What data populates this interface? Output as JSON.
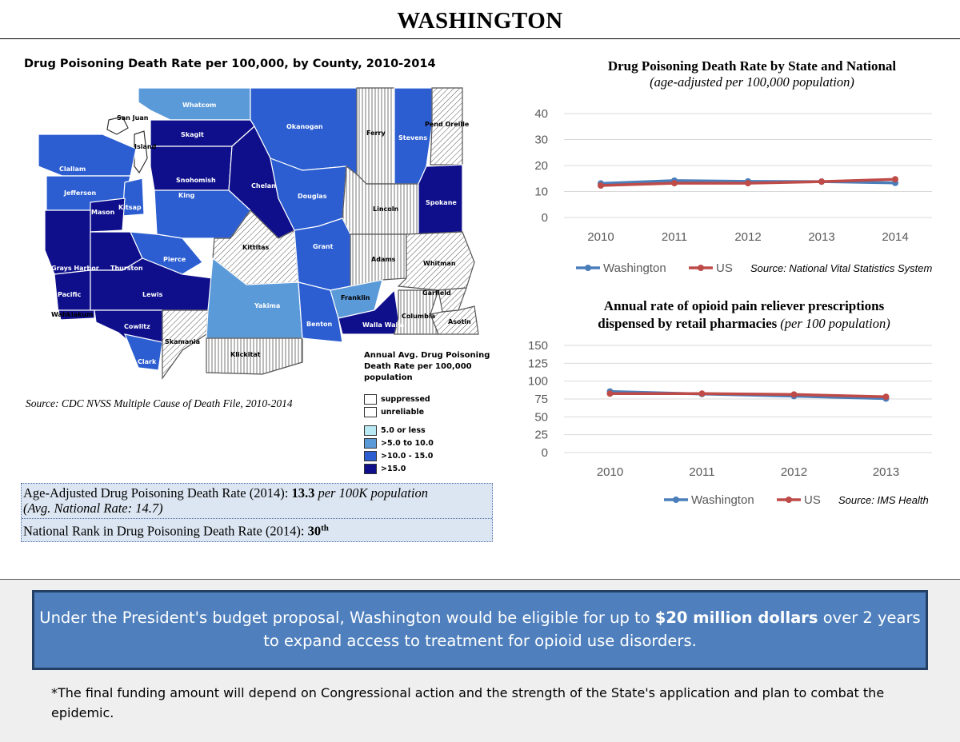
{
  "page": {
    "title": "WASHINGTON"
  },
  "map": {
    "title": "Drug Poisoning Death Rate per 100,000, by County, 2010-2014",
    "source": "Source: CDC NVSS Multiple Cause of Death File, 2010-2014",
    "legend": {
      "title": "Annual Avg. Drug Poisoning Death Rate per 100,000 population",
      "items": [
        {
          "label": "suppressed",
          "color": "#ffffff"
        },
        {
          "label": "unreliable",
          "color": "#ffffff"
        },
        {
          "label": "5.0 or less",
          "color": "#b9e9f2"
        },
        {
          "label": ">5.0 to 10.0",
          "color": "#5b9ad9"
        },
        {
          "label": ">10.0 - 15.0",
          "color": "#2c5ed1"
        },
        {
          "label": ">15.0",
          "color": "#0f0f8c"
        }
      ]
    },
    "counties": {
      "whatcom": "Whatcom",
      "san_juan": "San Juan",
      "skagit": "Skagit",
      "island": "Island",
      "okanogan": "Okanogan",
      "ferry": "Ferry",
      "stevens": "Stevens",
      "pend_oreille": "Pend Oreille",
      "clallam": "Clallam",
      "jefferson": "Jefferson",
      "snohomish": "Snohomish",
      "chelan": "Chelan",
      "douglas": "Douglas",
      "mason": "Mason",
      "kitsap": "Kitsap",
      "king": "King",
      "lincoln": "Lincoln",
      "spokane": "Spokane",
      "grays_harbor": "Grays Harbor",
      "thurston": "Thurston",
      "pierce": "Pierce",
      "kittitas": "Kittitas",
      "grant": "Grant",
      "adams": "Adams",
      "whitman": "Whitman",
      "pacific": "Pacific",
      "lewis": "Lewis",
      "yakima": "Yakima",
      "franklin": "Franklin",
      "garfield": "Garfield",
      "wahkiakum": "Wahkiakum",
      "cowlitz": "Cowlitz",
      "benton": "Benton",
      "walla_walla": "Walla Walla",
      "columbia": "Columbia",
      "asotin": "Asotin",
      "skamania": "Skamania",
      "klickitat": "Klickitat",
      "clark": "Clark"
    }
  },
  "stats": {
    "line1_prefix": "Age-Adjusted Drug Poisoning Death Rate (2014): ",
    "line1_value": "13.3",
    "line1_unit": " per 100K population",
    "line1_sub": "(Avg. National Rate: 14.7)",
    "line2_prefix": "National Rank in Drug Poisoning Death Rate (2014): ",
    "line2_value": "30",
    "line2_sup": "th"
  },
  "chart_data": [
    {
      "type": "line",
      "title": "Drug Poisoning Death Rate by State and National",
      "subtitle": "(age-adjusted per 100,000 population)",
      "categories": [
        "2010",
        "2011",
        "2012",
        "2013",
        "2014"
      ],
      "series": [
        {
          "name": "Washington",
          "values": [
            13.1,
            14.2,
            13.9,
            13.8,
            13.3
          ],
          "color": "#4a7ebb"
        },
        {
          "name": "US",
          "values": [
            12.3,
            13.2,
            13.2,
            13.8,
            14.7
          ],
          "color": "#be4b48"
        }
      ],
      "ylim": [
        0,
        40
      ],
      "yticks": [
        "0",
        "10",
        "20",
        "30",
        "40"
      ],
      "source": "Source: National Vital Statistics System"
    },
    {
      "type": "line",
      "title": "Annual rate of opioid pain reliever prescriptions",
      "title2": "dispensed by retail pharmacies",
      "subtitle": "(per 100 population)",
      "categories": [
        "2010",
        "2011",
        "2012",
        "2013"
      ],
      "series": [
        {
          "name": "Washington",
          "values": [
            85.5,
            82.0,
            79.0,
            75.5
          ],
          "color": "#4a7ebb"
        },
        {
          "name": "US",
          "values": [
            82.5,
            82.5,
            81.3,
            78.1
          ],
          "color": "#be4b48"
        }
      ],
      "ylim": [
        0,
        150
      ],
      "yticks": [
        "0",
        "25",
        "50",
        "75",
        "100",
        "125",
        "150"
      ],
      "source": "Source: IMS Health"
    }
  ],
  "callout": {
    "text_before": "Under the President's budget proposal, Washington would be eligible for up to ",
    "amount": "$20 million dollars",
    "text_after": " over 2 years to expand access to treatment for opioid use disorders."
  },
  "footnote": "*The final funding amount will depend on Congressional action and the strength of the State's application and plan to combat the epidemic."
}
